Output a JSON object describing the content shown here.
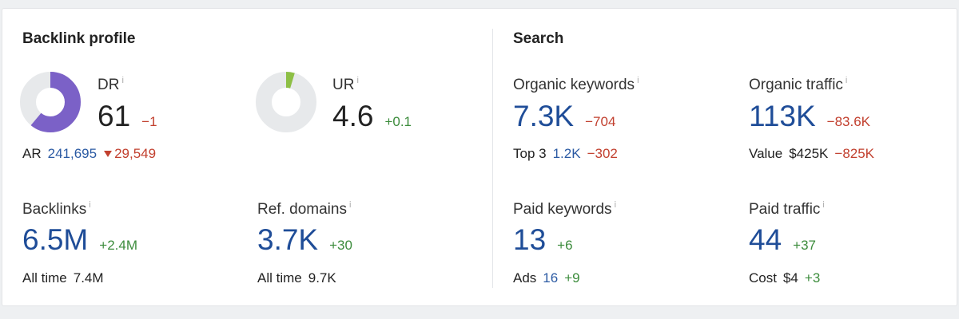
{
  "backlink_profile": {
    "title": "Backlink profile",
    "dr": {
      "label": "DR",
      "info": "i",
      "value": 61,
      "change": "−1",
      "scale": [
        0,
        100
      ],
      "color": "#7b61c7"
    },
    "ar": {
      "label": "AR",
      "value": "241,695",
      "change": "29,549"
    },
    "ur": {
      "label": "UR",
      "info": "i",
      "value": 4.6,
      "change": "+0.1",
      "scale": [
        0,
        100
      ],
      "color": "#8dbf45"
    },
    "backlinks": {
      "label": "Backlinks",
      "info": "i",
      "value": "6.5M",
      "change": "+2.4M",
      "sub_label": "All time",
      "sub_value": "7.4M"
    },
    "ref_domains": {
      "label": "Ref. domains",
      "info": "i",
      "value": "3.7K",
      "change": "+30",
      "sub_label": "All time",
      "sub_value": "9.7K"
    }
  },
  "search": {
    "title": "Search",
    "organic_keywords": {
      "label": "Organic keywords",
      "info": "i",
      "value": "7.3K",
      "change": "−704",
      "sub_label": "Top 3",
      "sub_value": "1.2K",
      "sub_change": "−302"
    },
    "organic_traffic": {
      "label": "Organic traffic",
      "info": "i",
      "value": "113K",
      "change": "−83.6K",
      "sub_label": "Value",
      "sub_value": "$425K",
      "sub_change": "−825K"
    },
    "paid_keywords": {
      "label": "Paid keywords",
      "info": "i",
      "value": "13",
      "change": "+6",
      "sub_label": "Ads",
      "sub_value": "16",
      "sub_change": "+9"
    },
    "paid_traffic": {
      "label": "Paid traffic",
      "info": "i",
      "value": "44",
      "change": "+37",
      "sub_label": "Cost",
      "sub_value": "$4",
      "sub_change": "+3"
    }
  }
}
